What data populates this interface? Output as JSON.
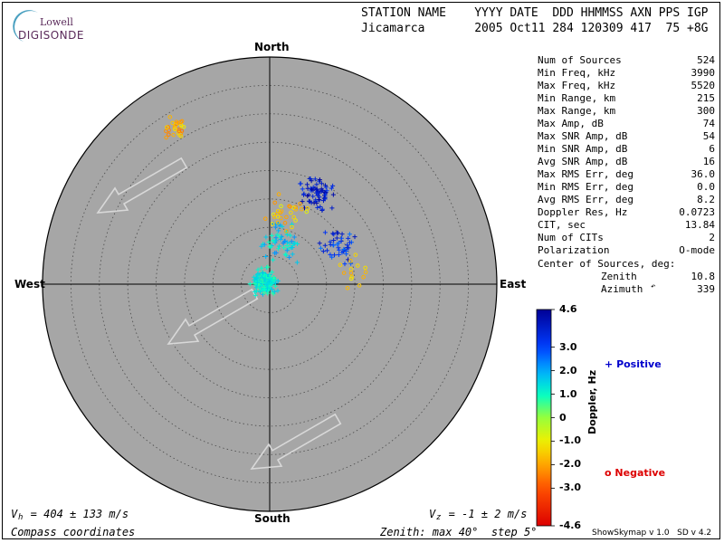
{
  "logo": {
    "top": "Lowell",
    "main": "DIGISONDE"
  },
  "header": {
    "labels": "STATION NAME    YYYY DATE  DDD HHMMSS AXN PPS IGP",
    "values": "Jicamarca       2005 Oct11 284 120309 417  75 +8G"
  },
  "stats": [
    {
      "label": "Num of Sources",
      "value": "524"
    },
    {
      "label": "Min Freq, kHz",
      "value": "3990"
    },
    {
      "label": "Max Freq, kHz",
      "value": "5520"
    },
    {
      "label": "Min Range, km",
      "value": "215"
    },
    {
      "label": "Max Range, km",
      "value": "300"
    },
    {
      "label": "Max Amp, dB",
      "value": "74"
    },
    {
      "label": "Max SNR Amp, dB",
      "value": "54"
    },
    {
      "label": "Min SNR Amp, dB",
      "value": "6"
    },
    {
      "label": "Avg SNR Amp, dB",
      "value": "16"
    },
    {
      "label": "Max RMS Err, deg",
      "value": "36.0"
    },
    {
      "label": "Min RMS Err, deg",
      "value": "0.0"
    },
    {
      "label": "Avg RMS Err, deg",
      "value": "8.2"
    },
    {
      "label": "Doppler Res, Hz",
      "value": "0.0723"
    },
    {
      "label": "CIT, sec",
      "value": "13.84"
    },
    {
      "label": "Num of CITs",
      "value": "2"
    },
    {
      "label": "Polarization",
      "value": "O-mode"
    }
  ],
  "center": {
    "title": "Center of Sources, deg:",
    "zenith_label": "Zenith",
    "zenith_value": "10.8",
    "azimuth_label": "Azimuth",
    "azimuth_value": "339"
  },
  "compass": {
    "north": "North",
    "south": "South",
    "east": "East",
    "west": "West"
  },
  "footer": {
    "vh": "V  = 404 ± 133 m/s",
    "vh_sub": "h",
    "vz": "V  = -1 ± 2 m/s",
    "vz_sub": "z",
    "coords": "Compass coordinates",
    "zenith_info": "Zenith: max 40°  step 5°",
    "version": "ShowSkymap v 1.0   SD v 4.2"
  },
  "colorbar": {
    "title": "Doppler, Hz",
    "ticks": [
      "4.6",
      "3.0",
      "2.0",
      "1.0",
      "0",
      "-1.0",
      "-2.0",
      "-3.0",
      "-4.6"
    ],
    "tick_values": [
      4.6,
      3.0,
      2.0,
      1.0,
      0,
      -1.0,
      -2.0,
      -3.0,
      -4.6
    ]
  },
  "legend": {
    "positive": "Positive",
    "negative": "Negative",
    "positive_color": "#0000cc",
    "negative_color": "#dd0000"
  },
  "chart_data": {
    "type": "scatter",
    "projection": "polar-skymap",
    "zenith_max_deg": 40,
    "zenith_step_deg": 5,
    "color_scale": "doppler",
    "doppler_range": [
      -4.6,
      4.6
    ],
    "colors": {
      "disk": "#a6a6a6",
      "grid": "#4a4a4a",
      "arrow": "#d8d8d8"
    },
    "velocity_arrow_azimuths_deg": [
      240,
      240,
      240
    ],
    "clusters": [
      {
        "name": "positive-high",
        "marker": "plus",
        "az_deg": 28,
        "zen_deg": 18,
        "spread": 4,
        "count": 70,
        "doppler": [
          3.0,
          4.6
        ]
      },
      {
        "name": "positive-east",
        "marker": "plus",
        "az_deg": 62,
        "zen_deg": 14,
        "spread": 4,
        "count": 45,
        "doppler": [
          2.5,
          4.2
        ]
      },
      {
        "name": "positive-center",
        "marker": "plus",
        "az_deg": 300,
        "zen_deg": 1,
        "spread": 3,
        "count": 170,
        "doppler": [
          0.6,
          1.8
        ]
      },
      {
        "name": "positive-mid",
        "marker": "plus",
        "az_deg": 10,
        "zen_deg": 8,
        "spread": 5,
        "count": 60,
        "doppler": [
          0.8,
          2.4
        ]
      },
      {
        "name": "negative-nw",
        "marker": "circle",
        "az_deg": 328,
        "zen_deg": 32,
        "spread": 3,
        "count": 28,
        "doppler": [
          -2.6,
          -1.0
        ]
      },
      {
        "name": "negative-scatter",
        "marker": "circle",
        "az_deg": 10,
        "zen_deg": 12,
        "spread": 6,
        "count": 30,
        "doppler": [
          -2.2,
          -0.8
        ]
      },
      {
        "name": "negative-east",
        "marker": "circle",
        "az_deg": 80,
        "zen_deg": 15,
        "spread": 5,
        "count": 14,
        "doppler": [
          -2.0,
          -1.0
        ]
      }
    ]
  }
}
